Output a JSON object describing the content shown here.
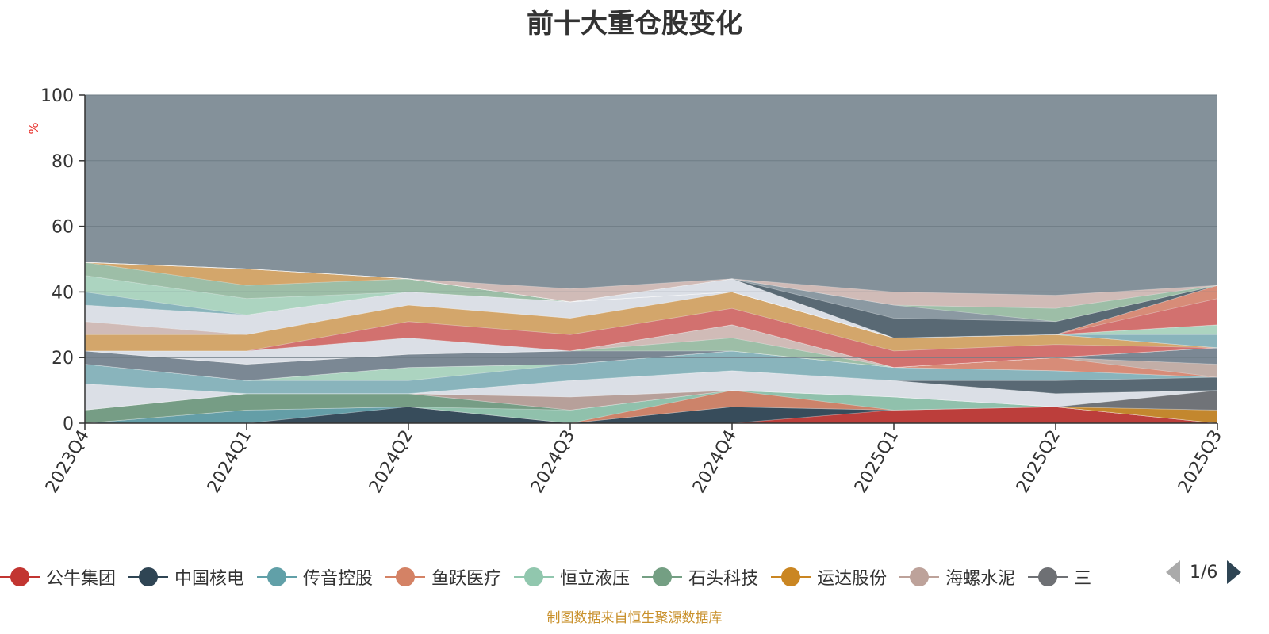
{
  "chart_data": {
    "type": "area",
    "title": "前十大重仓股变化",
    "ylabel": "%",
    "ylim": [
      0,
      100
    ],
    "yticks": [
      "0",
      "20",
      "40",
      "60",
      "80",
      "100"
    ],
    "categories": [
      "2023Q4",
      "2024Q1",
      "2024Q2",
      "2024Q3",
      "2024Q4",
      "2025Q1",
      "2025Q2",
      "2025Q3"
    ],
    "grid": true,
    "background_color": "#84919a",
    "series": [
      {
        "name": "公牛集团",
        "color": "#c23531",
        "values": [
          0,
          0,
          0,
          0,
          0,
          4,
          5,
          0
        ]
      },
      {
        "name": "中国核电",
        "color": "#2f4554",
        "values": [
          0,
          0,
          5,
          0,
          5,
          0,
          0,
          0
        ]
      },
      {
        "name": "传音控股",
        "color": "#61a0a8",
        "values": [
          0,
          4,
          0,
          0,
          0,
          0,
          0,
          0
        ]
      },
      {
        "name": "鱼跃医疗",
        "color": "#d48265",
        "values": [
          0,
          0,
          0,
          0,
          5,
          0,
          0,
          0
        ]
      },
      {
        "name": "恒立液压",
        "color": "#91c7ae",
        "values": [
          0,
          0,
          0,
          4,
          0,
          4,
          0,
          0
        ]
      },
      {
        "name": "石头科技",
        "color": "#749f83",
        "values": [
          4,
          5,
          4,
          0,
          0,
          0,
          0,
          0
        ]
      },
      {
        "name": "运达股份",
        "color": "#ca8622",
        "values": [
          0,
          0,
          0,
          0,
          0,
          0,
          0,
          4
        ]
      },
      {
        "name": "海螺水泥",
        "color": "#bda29a",
        "values": [
          0,
          0,
          0,
          4,
          0,
          0,
          0,
          0
        ]
      },
      {
        "name": "三",
        "color": "#6e7074",
        "values": [
          0,
          0,
          0,
          0,
          0,
          0,
          0,
          6
        ]
      },
      {
        "name": "",
        "color": "#e4e8ee",
        "values": [
          8,
          0,
          0,
          5,
          6,
          5,
          4,
          0
        ]
      },
      {
        "name": "",
        "color": "#546570",
        "values": [
          0,
          0,
          0,
          0,
          0,
          0,
          4,
          4
        ]
      },
      {
        "name": "",
        "color": "#8ab8c0",
        "values": [
          6,
          4,
          4,
          5,
          6,
          4,
          3,
          0
        ]
      },
      {
        "name": "",
        "color": "#b0dcc4",
        "values": [
          0,
          0,
          4,
          0,
          0,
          0,
          0,
          0
        ]
      },
      {
        "name": "",
        "color": "#e08c74",
        "values": [
          0,
          0,
          0,
          0,
          0,
          0,
          4,
          0
        ]
      },
      {
        "name": "",
        "color": "#c9b1a8",
        "values": [
          0,
          0,
          0,
          0,
          0,
          0,
          0,
          4
        ]
      },
      {
        "name": "",
        "color": "#7a8794",
        "values": [
          4,
          5,
          4,
          4,
          0,
          0,
          0,
          5
        ]
      },
      {
        "name": "",
        "color": "#a0c3a8",
        "values": [
          0,
          0,
          0,
          0,
          4,
          0,
          0,
          0
        ]
      },
      {
        "name": "",
        "color": "#d8c0ba",
        "values": [
          0,
          0,
          0,
          0,
          4,
          0,
          0,
          0
        ]
      },
      {
        "name": "",
        "color": "#8c9aa3",
        "values": [
          0,
          0,
          0,
          0,
          0,
          0,
          0,
          0
        ]
      },
      {
        "name": "",
        "color": "#e4e8ee",
        "values": [
          0,
          4,
          5,
          0,
          0,
          0,
          0,
          0
        ]
      },
      {
        "name": "",
        "color": "#da6e6a",
        "values": [
          0,
          0,
          5,
          5,
          5,
          5,
          4,
          0
        ]
      },
      {
        "name": "",
        "color": "#dca866",
        "values": [
          5,
          5,
          5,
          5,
          5,
          4,
          3,
          0
        ]
      },
      {
        "name": "",
        "color": "#d8c0ba",
        "values": [
          4,
          0,
          0,
          0,
          0,
          0,
          0,
          0
        ]
      },
      {
        "name": "",
        "color": "#e4e8ee",
        "values": [
          5,
          6,
          4,
          5,
          0,
          0,
          0,
          0
        ]
      },
      {
        "name": "",
        "color": "#8ab8c0",
        "values": [
          4,
          0,
          0,
          0,
          0,
          0,
          0,
          4
        ]
      },
      {
        "name": "",
        "color": "#b0dcc4",
        "values": [
          5,
          5,
          0,
          0,
          0,
          0,
          0,
          3
        ]
      },
      {
        "name": "",
        "color": "#a0c3a8",
        "values": [
          4,
          4,
          4,
          0,
          0,
          0,
          0,
          0
        ]
      },
      {
        "name": "",
        "color": "#dca866",
        "values": [
          0,
          5,
          0,
          0,
          0,
          0,
          0,
          0
        ]
      },
      {
        "name": "",
        "color": "#da6e6a",
        "values": [
          0,
          0,
          0,
          0,
          0,
          0,
          0,
          8
        ]
      },
      {
        "name": "",
        "color": "#e08c74",
        "values": [
          0,
          0,
          0,
          0,
          0,
          0,
          0,
          4
        ]
      },
      {
        "name": "",
        "color": "#e4e8ee",
        "values": [
          0,
          0,
          0,
          0,
          4,
          0,
          0,
          0
        ]
      },
      {
        "name": "",
        "color": "#546570",
        "values": [
          0,
          0,
          0,
          0,
          0,
          6,
          4,
          0
        ]
      },
      {
        "name": "",
        "color": "#8c9aa3",
        "values": [
          0,
          0,
          0,
          0,
          0,
          4,
          0,
          0
        ]
      },
      {
        "name": "",
        "color": "#a0c3a8",
        "values": [
          0,
          0,
          0,
          0,
          0,
          0,
          4,
          0
        ]
      },
      {
        "name": "",
        "color": "#d8c0ba",
        "values": [
          0,
          0,
          0,
          4,
          0,
          4,
          4,
          0
        ]
      }
    ]
  },
  "legend": {
    "items": [
      {
        "label": "公牛集团",
        "color": "#c23531"
      },
      {
        "label": "中国核电",
        "color": "#2f4554"
      },
      {
        "label": "传音控股",
        "color": "#61a0a8"
      },
      {
        "label": "鱼跃医疗",
        "color": "#d48265"
      },
      {
        "label": "恒立液压",
        "color": "#91c7ae"
      },
      {
        "label": "石头科技",
        "color": "#749f83"
      },
      {
        "label": "运达股份",
        "color": "#ca8622"
      },
      {
        "label": "海螺水泥",
        "color": "#bda29a"
      },
      {
        "label": "三",
        "color": "#6e7074"
      }
    ],
    "page": "1/6"
  },
  "source": "制图数据来自恒生聚源数据库"
}
